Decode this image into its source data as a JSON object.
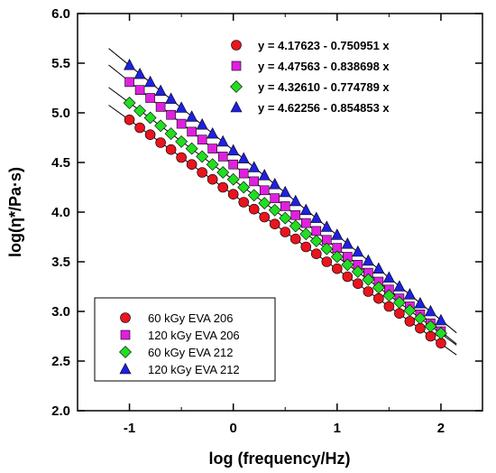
{
  "chart_data": {
    "type": "scatter",
    "xlabel": "log (frequency/Hz)",
    "ylabel": "log(η*/Pa·s)",
    "xlim": [
      -1.5,
      2.4
    ],
    "ylim": [
      2.0,
      6.0
    ],
    "xticks": [
      "-1",
      "0",
      "1",
      "2"
    ],
    "xtick_values": [
      -1,
      0,
      1,
      2
    ],
    "yticks": [
      "2.0",
      "2.5",
      "3.0",
      "3.5",
      "4.0",
      "4.5",
      "5.0",
      "5.5",
      "6.0"
    ],
    "ytick_values": [
      2.0,
      2.5,
      3.0,
      3.5,
      4.0,
      4.5,
      5.0,
      5.5,
      6.0
    ],
    "x": [
      -1.0,
      -0.9,
      -0.8,
      -0.7,
      -0.6,
      -0.5,
      -0.4,
      -0.3,
      -0.2,
      -0.1,
      0.0,
      0.1,
      0.2,
      0.3,
      0.4,
      0.5,
      0.6,
      0.7,
      0.8,
      0.9,
      1.0,
      1.1,
      1.2,
      1.3,
      1.4,
      1.5,
      1.6,
      1.7,
      1.8,
      1.9,
      2.0
    ],
    "fit_range": [
      -1.2,
      2.15
    ],
    "series": [
      {
        "name": "60 kGy EVA 206",
        "marker": "circle",
        "color": "#e8141e",
        "equation": "y = 4.17623 - 0.750951 x",
        "intercept": 4.17623,
        "slope": -0.750951,
        "values": [
          4.93,
          4.85,
          4.78,
          4.7,
          4.63,
          4.55,
          4.48,
          4.4,
          4.33,
          4.25,
          4.18,
          4.1,
          4.03,
          3.95,
          3.88,
          3.8,
          3.73,
          3.65,
          3.58,
          3.5,
          3.43,
          3.35,
          3.28,
          3.2,
          3.13,
          3.05,
          2.98,
          2.9,
          2.83,
          2.75,
          2.68
        ]
      },
      {
        "name": "120 kGy EVA 206",
        "marker": "square",
        "color": "#e020e0",
        "equation": "y = 4.47563 - 0.838698 x",
        "intercept": 4.47563,
        "slope": -0.838698,
        "values": [
          5.31,
          5.23,
          5.15,
          5.06,
          4.98,
          4.89,
          4.81,
          4.73,
          4.64,
          4.56,
          4.48,
          4.39,
          4.31,
          4.22,
          4.14,
          4.06,
          3.97,
          3.89,
          3.81,
          3.72,
          3.64,
          3.55,
          3.47,
          3.39,
          3.3,
          3.22,
          3.13,
          3.05,
          2.97,
          2.88,
          2.8
        ]
      },
      {
        "name": "60 kGy EVA 212",
        "marker": "diamond",
        "color": "#22dd22",
        "equation": "y = 4.32610 - 0.774789 x",
        "intercept": 4.3261,
        "slope": -0.774789,
        "values": [
          5.1,
          5.02,
          4.95,
          4.87,
          4.79,
          4.71,
          4.64,
          4.56,
          4.48,
          4.4,
          4.33,
          4.25,
          4.17,
          4.09,
          4.02,
          3.94,
          3.86,
          3.78,
          3.71,
          3.63,
          3.55,
          3.47,
          3.4,
          3.32,
          3.24,
          3.16,
          3.09,
          3.01,
          2.93,
          2.85,
          2.78
        ]
      },
      {
        "name": "120 kGy EVA 212",
        "marker": "triangle",
        "color": "#2020e0",
        "equation": "y = 4.62256 - 0.854853 x",
        "intercept": 4.62256,
        "slope": -0.854853,
        "values": [
          5.48,
          5.39,
          5.31,
          5.22,
          5.14,
          5.05,
          4.96,
          4.88,
          4.79,
          4.71,
          4.62,
          4.54,
          4.45,
          4.37,
          4.28,
          4.2,
          4.11,
          4.02,
          3.94,
          3.85,
          3.77,
          3.68,
          3.6,
          3.51,
          3.43,
          3.34,
          3.25,
          3.17,
          3.08,
          3.0,
          2.91
        ]
      }
    ]
  }
}
